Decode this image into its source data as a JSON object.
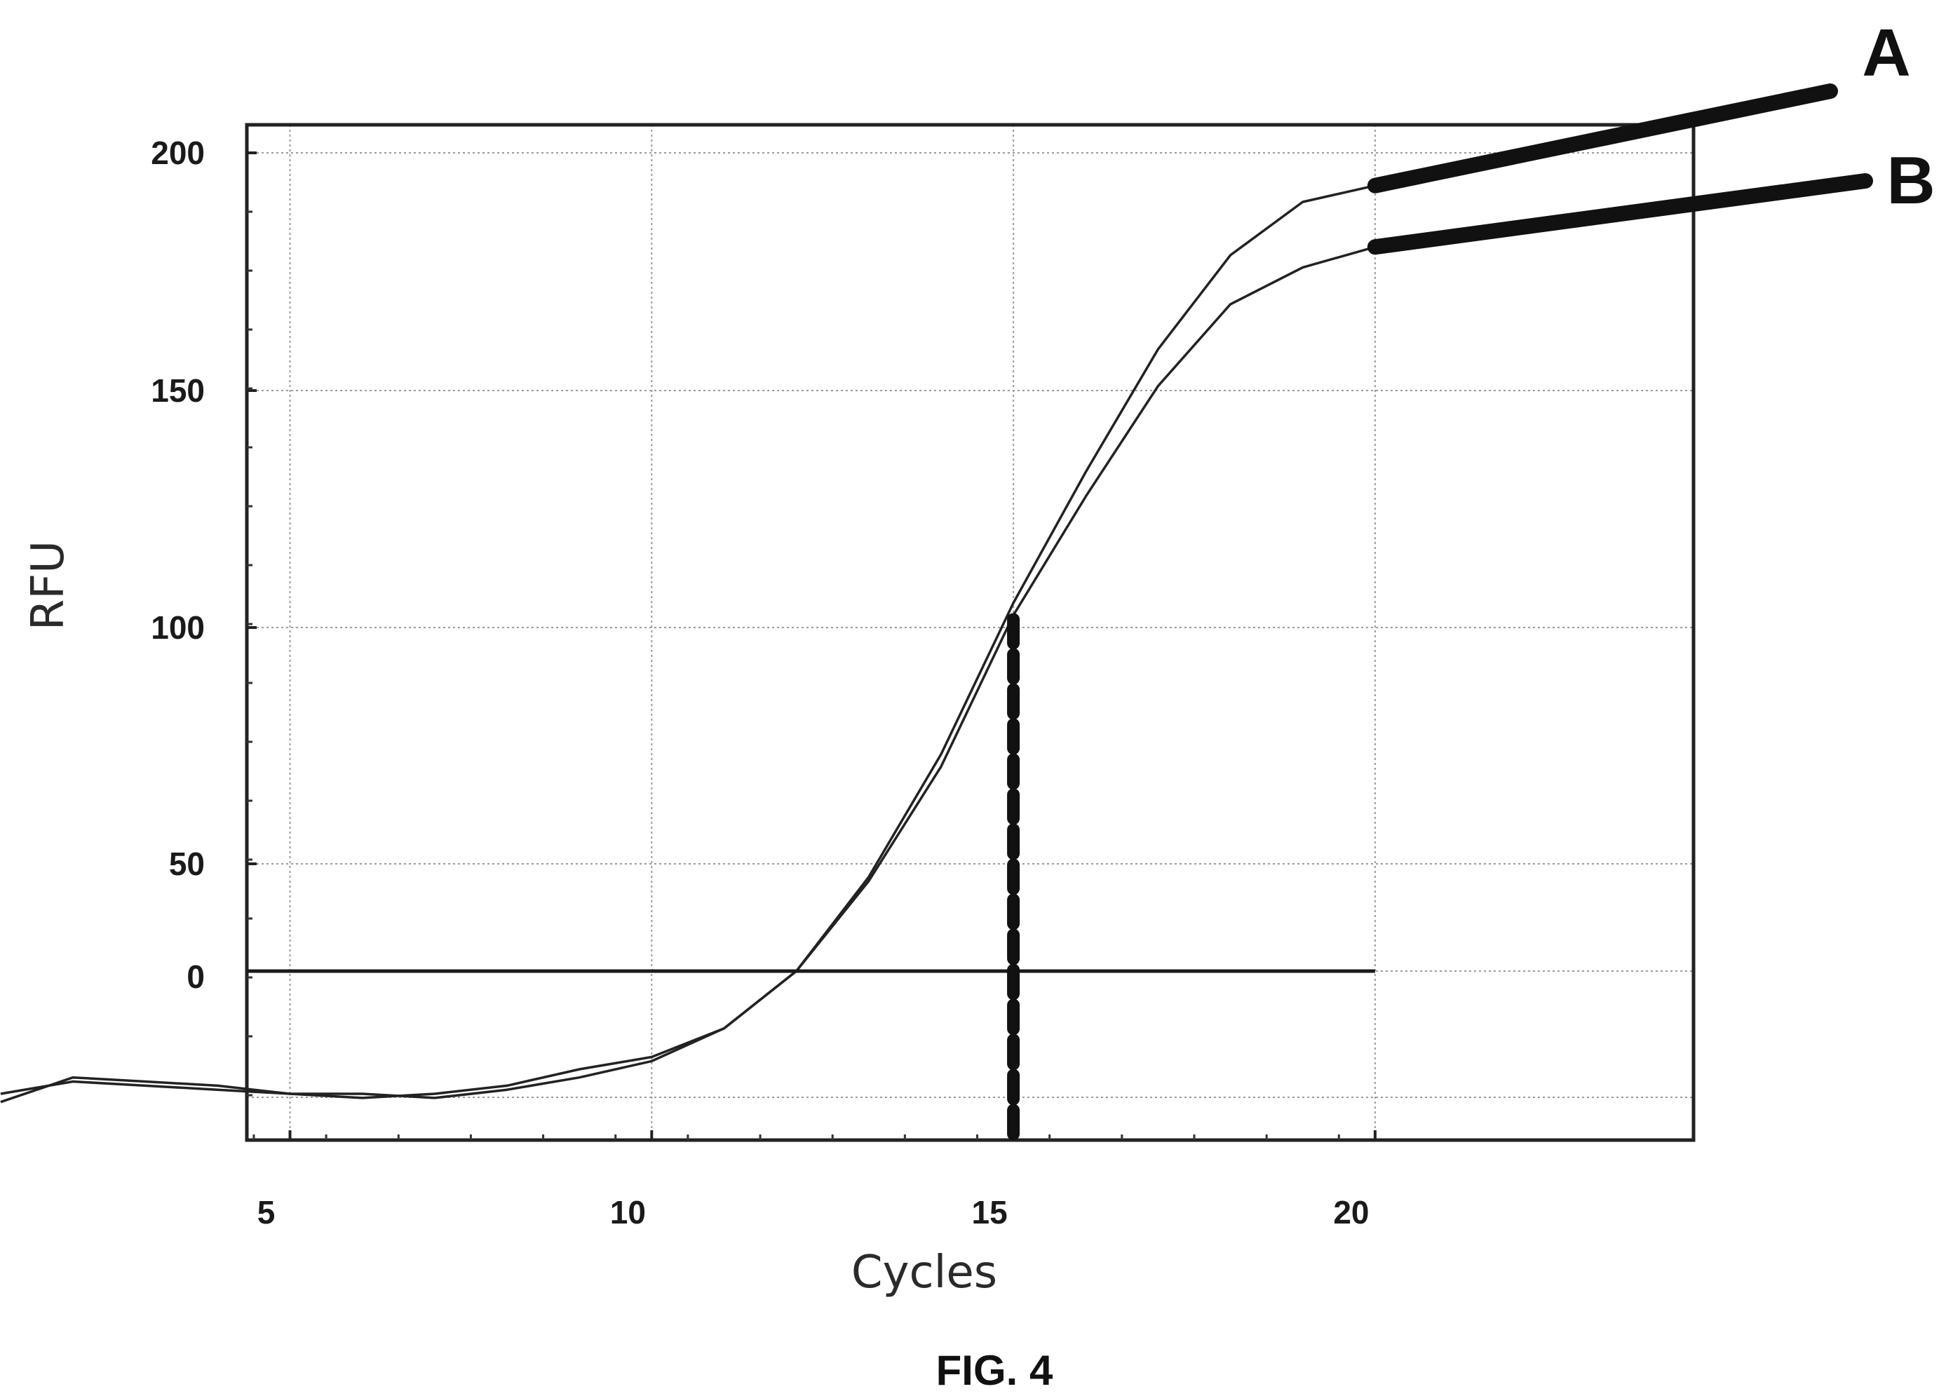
{
  "figure": {
    "caption": "FIG. 4"
  },
  "chart_data": {
    "type": "line",
    "xlabel": "Cycles",
    "ylabel": "RFU",
    "x_ticks": [
      5,
      10,
      15,
      20
    ],
    "y_tick_labels": [
      "200",
      "150",
      "100",
      "50",
      "0"
    ],
    "xlim": [
      1,
      21
    ],
    "grid": true,
    "series": [
      {
        "name": "A",
        "x": [
          1,
          2,
          3,
          4,
          5,
          6,
          7,
          8,
          9,
          10,
          11,
          12,
          13,
          14,
          15,
          16,
          17,
          18,
          19,
          20
        ],
        "y": [
          -32,
          -26,
          -27,
          -28,
          -30,
          -31,
          -30,
          -28,
          -24,
          -21,
          -14,
          0,
          23,
          53,
          90,
          122,
          152,
          175,
          188,
          192
        ]
      },
      {
        "name": "B",
        "x": [
          1,
          2,
          3,
          4,
          5,
          6,
          7,
          8,
          9,
          10,
          11,
          12,
          13,
          14,
          15,
          16,
          17,
          18,
          19,
          20
        ],
        "y": [
          -30,
          -27,
          -28,
          -29,
          -30,
          -30,
          -31,
          -29,
          -26,
          -22,
          -14,
          0,
          22,
          50,
          87,
          116,
          143,
          163,
          172,
          177
        ]
      }
    ],
    "threshold": {
      "y": 0
    },
    "marker_line": {
      "x": 15
    },
    "callouts": [
      "A",
      "B"
    ]
  }
}
